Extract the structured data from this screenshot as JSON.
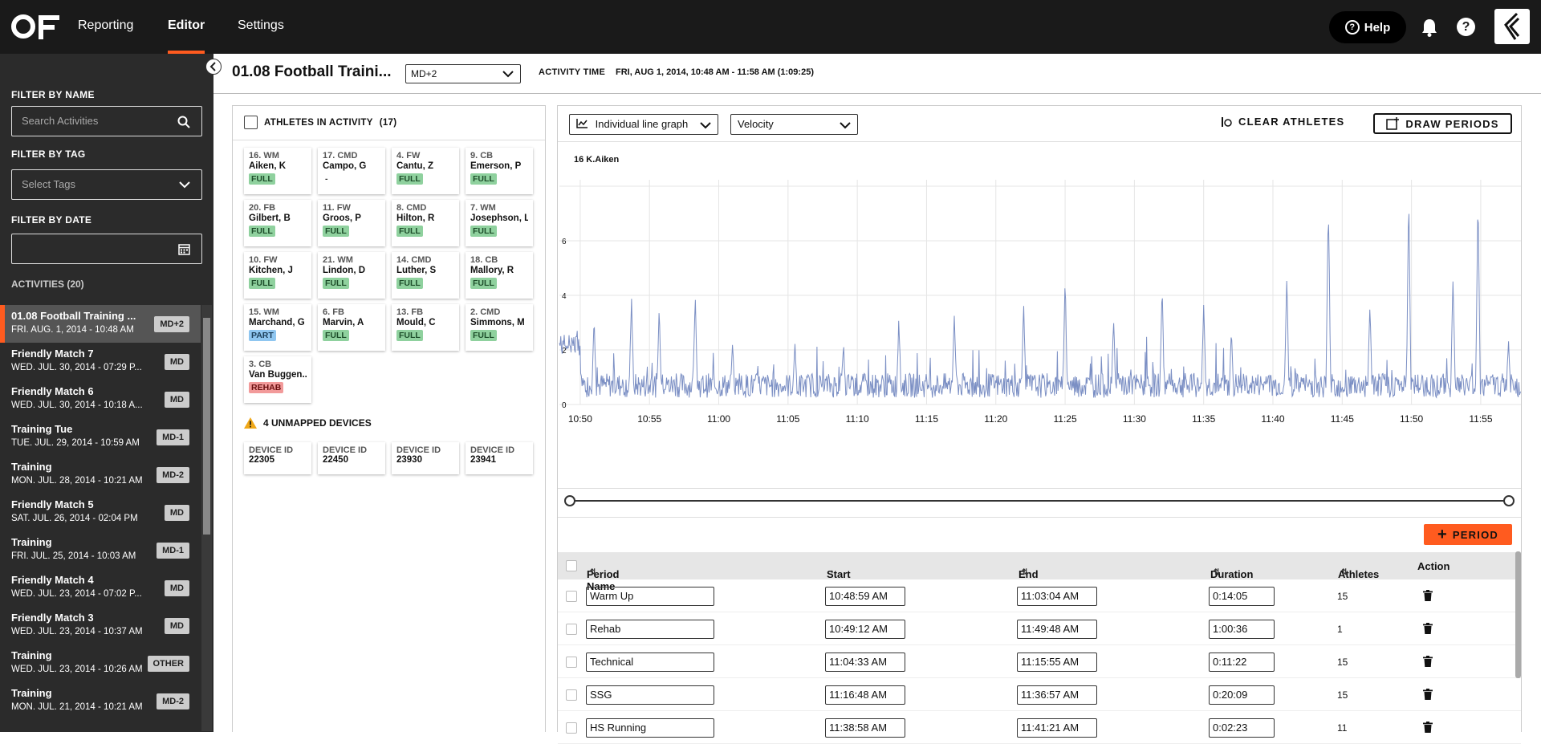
{
  "nav": {
    "items": [
      {
        "label": "Reporting",
        "active": false
      },
      {
        "label": "Editor",
        "active": true
      },
      {
        "label": "Settings",
        "active": false
      }
    ],
    "help_label": "Help"
  },
  "sidebar": {
    "filter_name_label": "FILTER BY NAME",
    "search_placeholder": "Search Activities",
    "filter_tag_label": "FILTER BY TAG",
    "tag_placeholder": "Select Tags",
    "filter_date_label": "FILTER BY DATE",
    "activities_label": "ACTIVITIES (20)",
    "activities": [
      {
        "name": "01.08 Football Training ...",
        "date": "FRI. AUG. 1, 2014 - 10:48 AM",
        "badge": "MD+2",
        "selected": true
      },
      {
        "name": "Friendly Match 7",
        "date": "WED. JUL. 30, 2014 - 07:29 P...",
        "badge": "MD",
        "selected": false
      },
      {
        "name": "Friendly Match 6",
        "date": "WED. JUL. 30, 2014 - 10:18 A...",
        "badge": "MD",
        "selected": false
      },
      {
        "name": "Training Tue",
        "date": "TUE. JUL. 29, 2014 - 10:59 AM",
        "badge": "MD-1",
        "selected": false
      },
      {
        "name": "Training",
        "date": "MON. JUL. 28, 2014 - 10:21 AM",
        "badge": "MD-2",
        "selected": false
      },
      {
        "name": "Friendly Match 5",
        "date": "SAT. JUL. 26, 2014 - 02:04 PM",
        "badge": "MD",
        "selected": false
      },
      {
        "name": "Training",
        "date": "FRI. JUL. 25, 2014 - 10:03 AM",
        "badge": "MD-1",
        "selected": false
      },
      {
        "name": "Friendly Match 4",
        "date": "WED. JUL. 23, 2014 - 07:02 P...",
        "badge": "MD",
        "selected": false
      },
      {
        "name": "Friendly Match 3",
        "date": "WED. JUL. 23, 2014 - 10:37 AM",
        "badge": "MD",
        "selected": false
      },
      {
        "name": "Training",
        "date": "WED. JUL. 23, 2014 - 10:26 AM",
        "badge": "OTHER",
        "selected": false
      },
      {
        "name": "Training",
        "date": "MON. JUL. 21, 2014 - 10:21 AM",
        "badge": "MD-2",
        "selected": false
      }
    ]
  },
  "header": {
    "title": "01.08 Football Traini...",
    "tag_value": "MD+2",
    "activity_time_label": "ACTIVITY TIME",
    "activity_time_value": "FRI, AUG 1, 2014, 10:48 AM - 11:58 AM (1:09:25)"
  },
  "athletes": {
    "header_label": "ATHLETES IN ACTIVITY",
    "count": "(17)",
    "list": [
      {
        "pos": "16. WM",
        "name": "Aiken, K",
        "status": "FULL"
      },
      {
        "pos": "17. CMD",
        "name": "Campo, G",
        "status": "-"
      },
      {
        "pos": "4. FW",
        "name": "Cantu, Z",
        "status": "FULL"
      },
      {
        "pos": "9. CB",
        "name": "Emerson, P",
        "status": "FULL"
      },
      {
        "pos": "20. FB",
        "name": "Gilbert, B",
        "status": "FULL"
      },
      {
        "pos": "11. FW",
        "name": "Groos, P",
        "status": "FULL"
      },
      {
        "pos": "8. CMD",
        "name": "Hilton, R",
        "status": "FULL"
      },
      {
        "pos": "7. WM",
        "name": "Josephson, L",
        "status": "FULL"
      },
      {
        "pos": "10. FW",
        "name": "Kitchen, J",
        "status": "FULL"
      },
      {
        "pos": "21. WM",
        "name": "Lindon, D",
        "status": "FULL"
      },
      {
        "pos": "14. CMD",
        "name": "Luther, S",
        "status": "FULL"
      },
      {
        "pos": "18. CB",
        "name": "Mallory, R",
        "status": "FULL"
      },
      {
        "pos": "15. WM",
        "name": "Marchand, G",
        "status": "PART"
      },
      {
        "pos": "6. FB",
        "name": "Marvin, A",
        "status": "FULL"
      },
      {
        "pos": "13. FB",
        "name": "Mould, C",
        "status": "FULL"
      },
      {
        "pos": "2. CMD",
        "name": "Simmons, M",
        "status": "FULL"
      },
      {
        "pos": "3. CB",
        "name": "Van Buggen...",
        "status": "REHAB"
      }
    ],
    "unmapped_label": "4 UNMAPPED DEVICES",
    "devices": [
      {
        "label": "DEVICE ID",
        "id": "22305"
      },
      {
        "label": "DEVICE ID",
        "id": "22450"
      },
      {
        "label": "DEVICE ID",
        "id": "23930"
      },
      {
        "label": "DEVICE ID",
        "id": "23941"
      }
    ]
  },
  "chart_controls": {
    "graph_type": "Individual line graph",
    "metric": "Velocity",
    "clear_label": "CLEAR ATHLETES",
    "draw_label": "DRAW PERIODS",
    "period_label": "PERIOD"
  },
  "chart_data": {
    "type": "line",
    "series": [
      {
        "name": "16 K.Aiken"
      }
    ],
    "ylim": [
      0,
      8
    ],
    "yticks": [
      "0",
      "2",
      "4",
      "6"
    ],
    "xticks": [
      "10:50",
      "10:55",
      "11:00",
      "11:05",
      "11:10",
      "11:15",
      "11:20",
      "11:25",
      "11:30",
      "11:35",
      "11:40",
      "11:45",
      "11:50",
      "11:55"
    ],
    "xlim_minutes": [
      0,
      69.4
    ],
    "peaks": [
      {
        "t": 2.5,
        "v": 3.0
      },
      {
        "t": 5.2,
        "v": 3.8
      },
      {
        "t": 7.2,
        "v": 3.4
      },
      {
        "t": 9.8,
        "v": 4.0
      },
      {
        "t": 12.5,
        "v": 2.2
      },
      {
        "t": 17.0,
        "v": 2.2
      },
      {
        "t": 20.5,
        "v": 2.1
      },
      {
        "t": 24.5,
        "v": 3.0
      },
      {
        "t": 28.5,
        "v": 3.2
      },
      {
        "t": 33.5,
        "v": 3.6
      },
      {
        "t": 36.5,
        "v": 4.5
      },
      {
        "t": 40.0,
        "v": 3.0
      },
      {
        "t": 43.5,
        "v": 4.2
      },
      {
        "t": 46.5,
        "v": 3.6
      },
      {
        "t": 48.5,
        "v": 2.5
      },
      {
        "t": 52.5,
        "v": 4.5
      },
      {
        "t": 55.5,
        "v": 7.4
      },
      {
        "t": 58.5,
        "v": 3.5
      },
      {
        "t": 61.3,
        "v": 7.6
      },
      {
        "t": 64.5,
        "v": 4.6
      },
      {
        "t": 66.3,
        "v": 7.5
      },
      {
        "t": 68.5,
        "v": 2.2
      }
    ]
  },
  "periods": {
    "columns": [
      "Period Name",
      "Start",
      "End",
      "Duration",
      "Athletes",
      "Action"
    ],
    "rows": [
      {
        "name": "Warm Up",
        "start": "10:48:59 AM",
        "end": "11:03:04 AM",
        "duration": "0:14:05",
        "athletes": "15"
      },
      {
        "name": "Rehab",
        "start": "10:49:12 AM",
        "end": "11:49:48 AM",
        "duration": "1:00:36",
        "athletes": "1"
      },
      {
        "name": "Technical",
        "start": "11:04:33 AM",
        "end": "11:15:55 AM",
        "duration": "0:11:22",
        "athletes": "15"
      },
      {
        "name": "SSG",
        "start": "11:16:48 AM",
        "end": "11:36:57 AM",
        "duration": "0:20:09",
        "athletes": "15"
      },
      {
        "name": "HS Running",
        "start": "11:38:58 AM",
        "end": "11:41:21 AM",
        "duration": "0:02:23",
        "athletes": "11"
      }
    ]
  }
}
